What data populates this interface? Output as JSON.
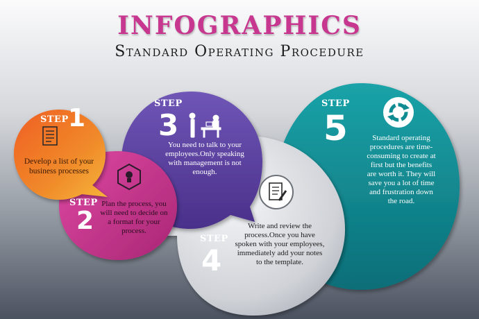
{
  "header": {
    "title": "INFOGRAPHICS",
    "subtitle": "Standard Operating Procedure"
  },
  "steps": [
    {
      "word": "STEP",
      "number": "1",
      "icon": "document-icon",
      "color": "#e9701e",
      "text": "Develop a list of your business processes"
    },
    {
      "word": "STEP",
      "number": "2",
      "icon": "lightbulb-icon",
      "color": "#c6358c",
      "text": "Plan the process, you will need to decide on a format for your process."
    },
    {
      "word": "STEP",
      "number": "3",
      "icon": "person-at-desk-icon",
      "color": "#5b3f9e",
      "text": "You need to talk to your employees.Only speaking with management is not enough."
    },
    {
      "word": "STEP",
      "number": "4",
      "icon": "document-pen-icon",
      "color": "#bfc2c8",
      "text": "Write and review the process.Once you have spoken with your employees, immediately add your notes to the template."
    },
    {
      "word": "STEP",
      "number": "5",
      "icon": "cycle-arrows-icon",
      "color": "#0f8c92",
      "text": "Standard operating procedures are time-consuming to create at first but the benefits are worth it. They will save you a lot of time and frustration down the road."
    }
  ]
}
